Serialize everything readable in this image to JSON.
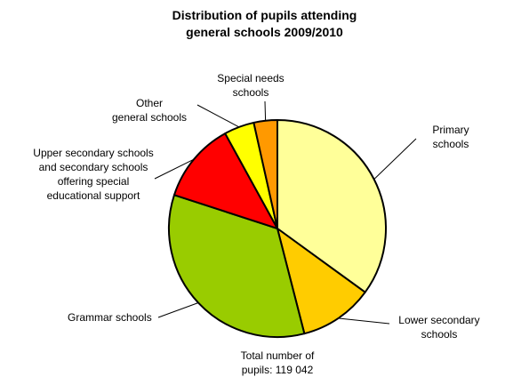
{
  "chart_data": {
    "type": "pie",
    "title_lines": [
      "Distribution of pupils attending",
      "general schools 2009/2010"
    ],
    "start_angle_deg": 0,
    "direction": "clockwise",
    "slices": [
      {
        "label_lines": [
          "Primary",
          "schools"
        ],
        "percent": 35,
        "color": "#FFFF99"
      },
      {
        "label_lines": [
          "Lower secondary",
          "schools"
        ],
        "percent": 11,
        "color": "#FFCC00"
      },
      {
        "label_lines": [
          "Grammar schools"
        ],
        "percent": 34,
        "color": "#99CC00"
      },
      {
        "label_lines": [
          "Upper secondary schools",
          "and secondary schools",
          "offering special",
          "educational support"
        ],
        "percent": 12,
        "color": "#FF0000"
      },
      {
        "label_lines": [
          "Other",
          "general schools"
        ],
        "percent": 4.5,
        "color": "#FFFF00"
      },
      {
        "label_lines": [
          "Special needs",
          "schools"
        ],
        "percent": 3.5,
        "color": "#FF9900"
      }
    ],
    "total_lines": [
      "Total number of",
      "pupils: 119 042"
    ]
  }
}
